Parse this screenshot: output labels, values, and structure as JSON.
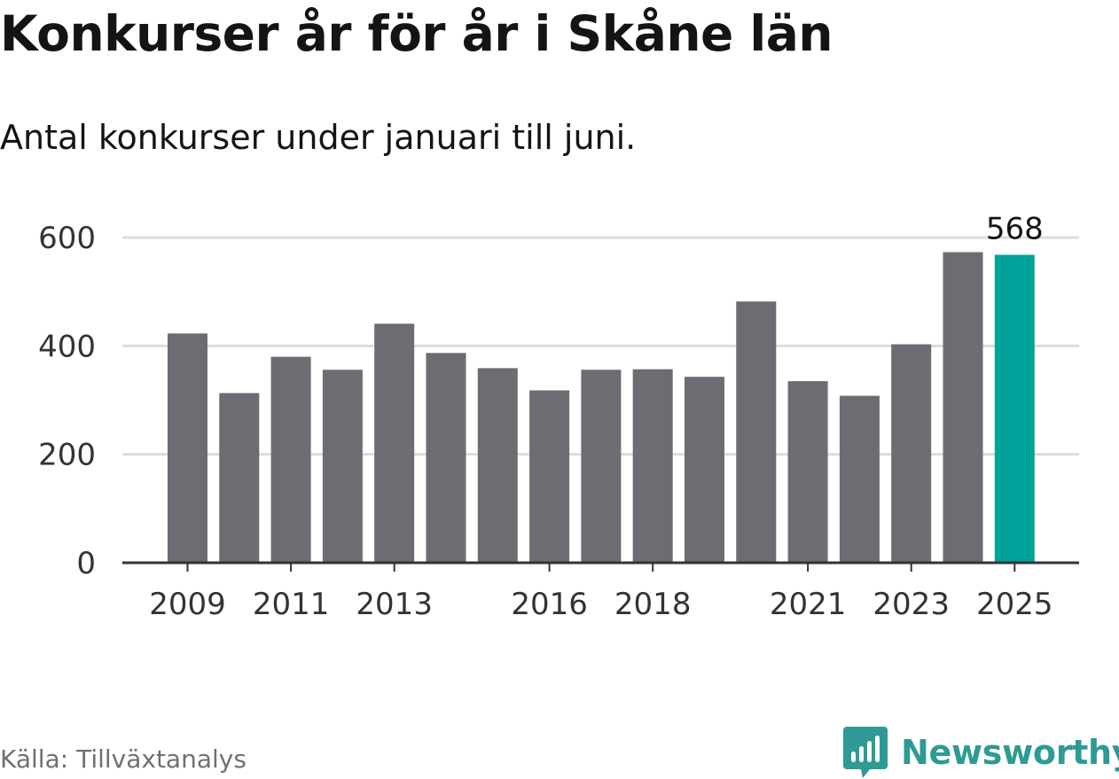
{
  "title": "Konkurser år för år i Skåne län",
  "subtitle": "Antal konkurser under januari till juni.",
  "source": "Källa: Tillväxtanalys",
  "brand": {
    "name": "Newsworthy",
    "logo_icon": "newsworthy-bar-chart-logo-icon"
  },
  "colors": {
    "bar": "#6d6c72",
    "highlight": "#00a39a",
    "gridline": "#dcdcdc",
    "axis": "#333333",
    "text": "#333333"
  },
  "chart_data": {
    "type": "bar",
    "categories": [
      "2009",
      "2010",
      "2011",
      "2012",
      "2013",
      "2014",
      "2015",
      "2016",
      "2017",
      "2018",
      "2019",
      "2020",
      "2021",
      "2022",
      "2023",
      "2024",
      "2025"
    ],
    "values": [
      423,
      313,
      380,
      356,
      441,
      387,
      359,
      318,
      356,
      357,
      343,
      482,
      335,
      308,
      403,
      573,
      568
    ],
    "highlight_category": "2025",
    "data_labels": [
      {
        "category": "2025",
        "text": "568"
      }
    ],
    "x_tick_labels": [
      "2009",
      "2011",
      "2013",
      "2016",
      "2018",
      "2021",
      "2023",
      "2025"
    ],
    "y_ticks": [
      0,
      200,
      400,
      600
    ],
    "ylim": [
      0,
      600
    ],
    "title": "Konkurser år för år i Skåne län",
    "subtitle": "Antal konkurser under januari till juni.",
    "xlabel": "",
    "ylabel": "",
    "grid": true,
    "legend": "none"
  }
}
